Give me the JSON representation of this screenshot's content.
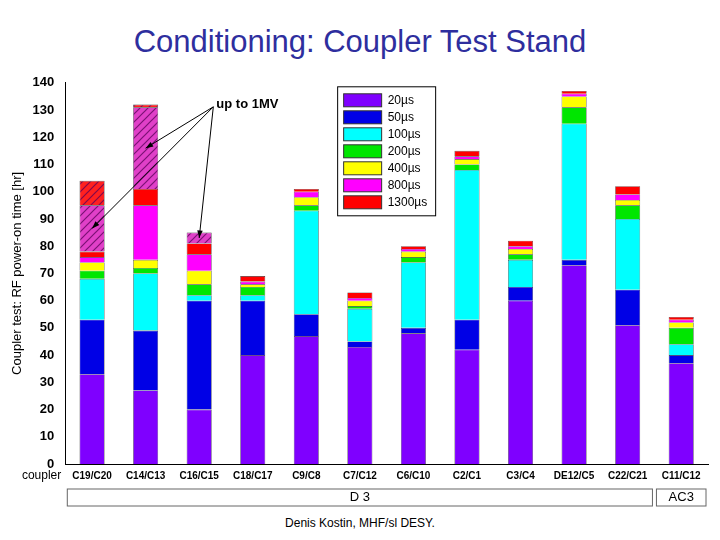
{
  "chart_data": {
    "type": "bar",
    "title": "Conditioning: Coupler Test Stand",
    "y_label": "Coupler test: RF power-on time [hr]",
    "x_label": "coupler",
    "source": "Denis Kostin, MHF/sl DESY.",
    "categories": [
      "C19/C20",
      "C14/C13",
      "C16/C15",
      "C18/C17",
      "C9/C8",
      "C7/C12",
      "C6/C10",
      "C2/C1",
      "C3/C4",
      "DE12/C5",
      "C22/C21",
      "C11/C12"
    ],
    "x_groups": [
      {
        "label": "D 3",
        "first": "C19/C20",
        "last": "C22/C21"
      },
      {
        "label": "AC3",
        "first": "C11/C12",
        "last": "C11/C12"
      }
    ],
    "stacked": true,
    "grid": false,
    "legend": "top",
    "ylim": [
      0,
      140
    ],
    "yticks": [
      0,
      10,
      20,
      30,
      40,
      50,
      60,
      70,
      80,
      90,
      100,
      110,
      120,
      130,
      140
    ],
    "series": [
      {
        "name": "20µs",
        "color": "#7f00ff",
        "values": [
          33,
          27,
          20,
          40,
          47,
          43,
          48,
          42,
          60,
          73,
          51,
          37
        ]
      },
      {
        "name": "50µs",
        "color": "#0000e6",
        "values": [
          20,
          22,
          40,
          20,
          8,
          2,
          2,
          11,
          5,
          2,
          13,
          3
        ]
      },
      {
        "name": "100µs",
        "color": "#00ffff",
        "values": [
          15,
          21,
          2,
          2,
          38,
          12,
          24,
          55,
          10,
          50,
          26,
          4
        ]
      },
      {
        "name": "200µs",
        "color": "#00e600",
        "values": [
          3,
          2,
          4,
          3,
          2,
          1,
          2,
          2,
          2,
          6,
          5,
          6
        ]
      },
      {
        "name": "400µs",
        "color": "#ffff00",
        "values": [
          3,
          3,
          5,
          1,
          3,
          2,
          2,
          2,
          2,
          4,
          2,
          2
        ]
      },
      {
        "name": "800µs",
        "color": "#ff00ff",
        "values": [
          2,
          20,
          6,
          1,
          2,
          1,
          1,
          1,
          1,
          1,
          2,
          1
        ]
      },
      {
        "name": "1300µs",
        "color": "#ff0000",
        "values": [
          2,
          6,
          4,
          2,
          1,
          2,
          1,
          2,
          2,
          1,
          3,
          1
        ]
      },
      {
        "name": "up to 1MV",
        "color": "#e040c8",
        "marker": "hatch",
        "values": [
          17,
          30,
          4,
          0,
          0,
          0,
          0,
          0,
          0,
          0,
          0,
          0
        ]
      },
      {
        "name": "up to 1MV",
        "color": "#ff2020",
        "marker": "hatch",
        "values": [
          9,
          1,
          0,
          0,
          0,
          0,
          0,
          0,
          0,
          0,
          0,
          0
        ]
      }
    ]
  }
}
